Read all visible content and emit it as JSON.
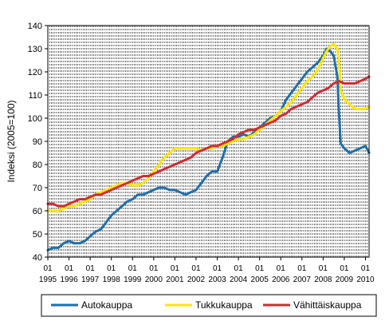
{
  "chart_data": {
    "type": "line",
    "ylabel": "Indeksi (2005=100)",
    "xlabel": "",
    "ylim": [
      40,
      140
    ],
    "yticks": [
      40,
      50,
      60,
      70,
      80,
      90,
      100,
      110,
      120,
      130,
      140
    ],
    "xlim": [
      1995.0,
      2010.17
    ],
    "xtick_month_label": "01",
    "xtick_year_labels": [
      "1995",
      "1996",
      "1997",
      "1998",
      "1999",
      "2000",
      "2001",
      "2002",
      "2003",
      "2004",
      "2005",
      "2006",
      "2007",
      "2008",
      "2009",
      "2010"
    ],
    "grid": "vertical dashed lines (monthly)",
    "legend_position": "bottom",
    "series": [
      {
        "name": "Autokauppa",
        "color": "#1f6fab",
        "x": [
          1995.0,
          1995.25,
          1995.5,
          1995.75,
          1996.0,
          1996.25,
          1996.5,
          1996.75,
          1997.0,
          1997.25,
          1997.5,
          1997.75,
          1998.0,
          1998.25,
          1998.5,
          1998.75,
          1999.0,
          1999.25,
          1999.5,
          1999.75,
          2000.0,
          2000.25,
          2000.5,
          2000.75,
          2001.0,
          2001.25,
          2001.5,
          2001.75,
          2002.0,
          2002.25,
          2002.5,
          2002.75,
          2003.0,
          2003.25,
          2003.5,
          2003.75,
          2004.0,
          2004.25,
          2004.5,
          2004.75,
          2005.0,
          2005.25,
          2005.5,
          2005.75,
          2006.0,
          2006.25,
          2006.5,
          2006.75,
          2007.0,
          2007.25,
          2007.5,
          2007.75,
          2008.0,
          2008.17,
          2008.33,
          2008.5,
          2008.67,
          2008.75,
          2008.83,
          2008.92,
          2009.0,
          2009.25,
          2009.5,
          2009.75,
          2010.0,
          2010.17
        ],
        "values": [
          43,
          44,
          44,
          46,
          47,
          46,
          46,
          47,
          49,
          51,
          52,
          55,
          58,
          60,
          62,
          64,
          65,
          67,
          67,
          68,
          69,
          70,
          70,
          69,
          69,
          68,
          67,
          68,
          69,
          72,
          75,
          77,
          77,
          83,
          90,
          92,
          92,
          93,
          92,
          94,
          96,
          98,
          100,
          101,
          103,
          108,
          111,
          114,
          117,
          120,
          122,
          124,
          127,
          130,
          129,
          127,
          118,
          102,
          89,
          88,
          87,
          85,
          86,
          87,
          88,
          85
        ]
      },
      {
        "name": "Tukkukauppa",
        "color": "#ffe600",
        "x": [
          1995.0,
          1995.25,
          1995.5,
          1995.75,
          1996.0,
          1996.25,
          1996.5,
          1996.75,
          1997.0,
          1997.25,
          1997.5,
          1997.75,
          1998.0,
          1998.25,
          1998.5,
          1998.75,
          1999.0,
          1999.25,
          1999.5,
          1999.75,
          2000.0,
          2000.25,
          2000.5,
          2000.75,
          2001.0,
          2001.25,
          2001.5,
          2001.75,
          2002.0,
          2002.25,
          2002.5,
          2002.75,
          2003.0,
          2003.25,
          2003.5,
          2003.75,
          2004.0,
          2004.25,
          2004.5,
          2004.75,
          2005.0,
          2005.25,
          2005.5,
          2005.75,
          2006.0,
          2006.25,
          2006.5,
          2006.75,
          2007.0,
          2007.25,
          2007.5,
          2007.75,
          2008.0,
          2008.17,
          2008.33,
          2008.5,
          2008.67,
          2008.75,
          2008.83,
          2008.92,
          2009.0,
          2009.25,
          2009.5,
          2009.75,
          2010.0,
          2010.17
        ],
        "values": [
          60,
          60,
          60,
          61,
          62,
          62,
          63,
          64,
          65,
          67,
          68,
          69,
          70,
          71,
          72,
          72,
          71,
          71,
          72,
          74,
          77,
          80,
          83,
          85,
          87,
          87,
          87,
          87,
          87,
          86,
          87,
          87,
          88,
          88,
          89,
          90,
          91,
          91,
          92,
          93,
          95,
          97,
          99,
          101,
          103,
          105,
          107,
          110,
          113,
          116,
          118,
          121,
          126,
          129,
          131,
          132,
          130,
          125,
          112,
          110,
          108,
          106,
          104,
          104,
          104,
          105
        ]
      },
      {
        "name": "Vähittäiskauppa",
        "color": "#d22b33",
        "x": [
          1995.0,
          1995.25,
          1995.5,
          1995.75,
          1996.0,
          1996.25,
          1996.5,
          1996.75,
          1997.0,
          1997.25,
          1997.5,
          1997.75,
          1998.0,
          1998.25,
          1998.5,
          1998.75,
          1999.0,
          1999.25,
          1999.5,
          1999.75,
          2000.0,
          2000.25,
          2000.5,
          2000.75,
          2001.0,
          2001.25,
          2001.5,
          2001.75,
          2002.0,
          2002.25,
          2002.5,
          2002.75,
          2003.0,
          2003.25,
          2003.5,
          2003.75,
          2004.0,
          2004.25,
          2004.5,
          2004.75,
          2005.0,
          2005.25,
          2005.5,
          2005.75,
          2006.0,
          2006.25,
          2006.5,
          2006.75,
          2007.0,
          2007.25,
          2007.5,
          2007.75,
          2008.0,
          2008.25,
          2008.5,
          2008.75,
          2009.0,
          2009.25,
          2009.5,
          2009.75,
          2010.0,
          2010.17
        ],
        "values": [
          63,
          63,
          62,
          62,
          63,
          64,
          65,
          65,
          66,
          67,
          67,
          68,
          69,
          70,
          71,
          72,
          73,
          74,
          75,
          75,
          76,
          77,
          78,
          79,
          80,
          81,
          82,
          83,
          85,
          86,
          87,
          88,
          88,
          89,
          90,
          91,
          93,
          94,
          95,
          95,
          96,
          97,
          98,
          99,
          101,
          102,
          104,
          105,
          106,
          107,
          109,
          111,
          112,
          113,
          115,
          116,
          115,
          115,
          115,
          116,
          117,
          118
        ]
      }
    ]
  }
}
